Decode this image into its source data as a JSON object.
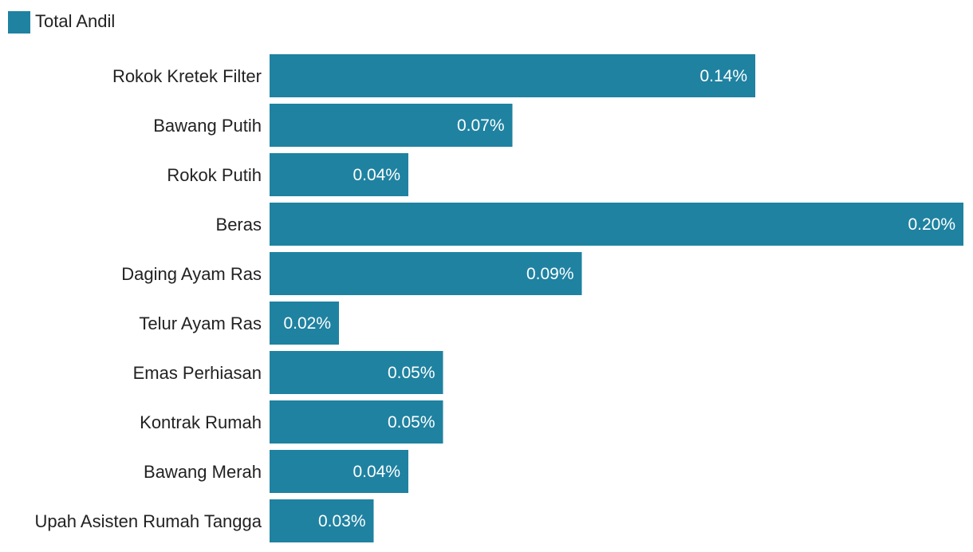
{
  "chart_data": {
    "type": "bar",
    "orientation": "horizontal",
    "legend_position": "top-left",
    "categories": [
      "Rokok Kretek Filter",
      "Bawang Putih",
      "Rokok Putih",
      "Beras",
      "Daging Ayam Ras",
      "Telur Ayam Ras",
      "Emas Perhiasan",
      "Kontrak Rumah",
      "Bawang Merah",
      "Upah Asisten Rumah Tangga"
    ],
    "series": [
      {
        "name": "Total Andil",
        "color": "#1f82a1",
        "values": [
          0.14,
          0.07,
          0.04,
          0.2,
          0.09,
          0.02,
          0.05,
          0.05,
          0.04,
          0.03
        ],
        "labels": [
          "0.14%",
          "0.07%",
          "0.04%",
          "0.20%",
          "0.09%",
          "0.02%",
          "0.05%",
          "0.05%",
          "0.04%",
          "0.03%"
        ]
      }
    ],
    "xlim": [
      0,
      0.2
    ],
    "grid": false
  }
}
